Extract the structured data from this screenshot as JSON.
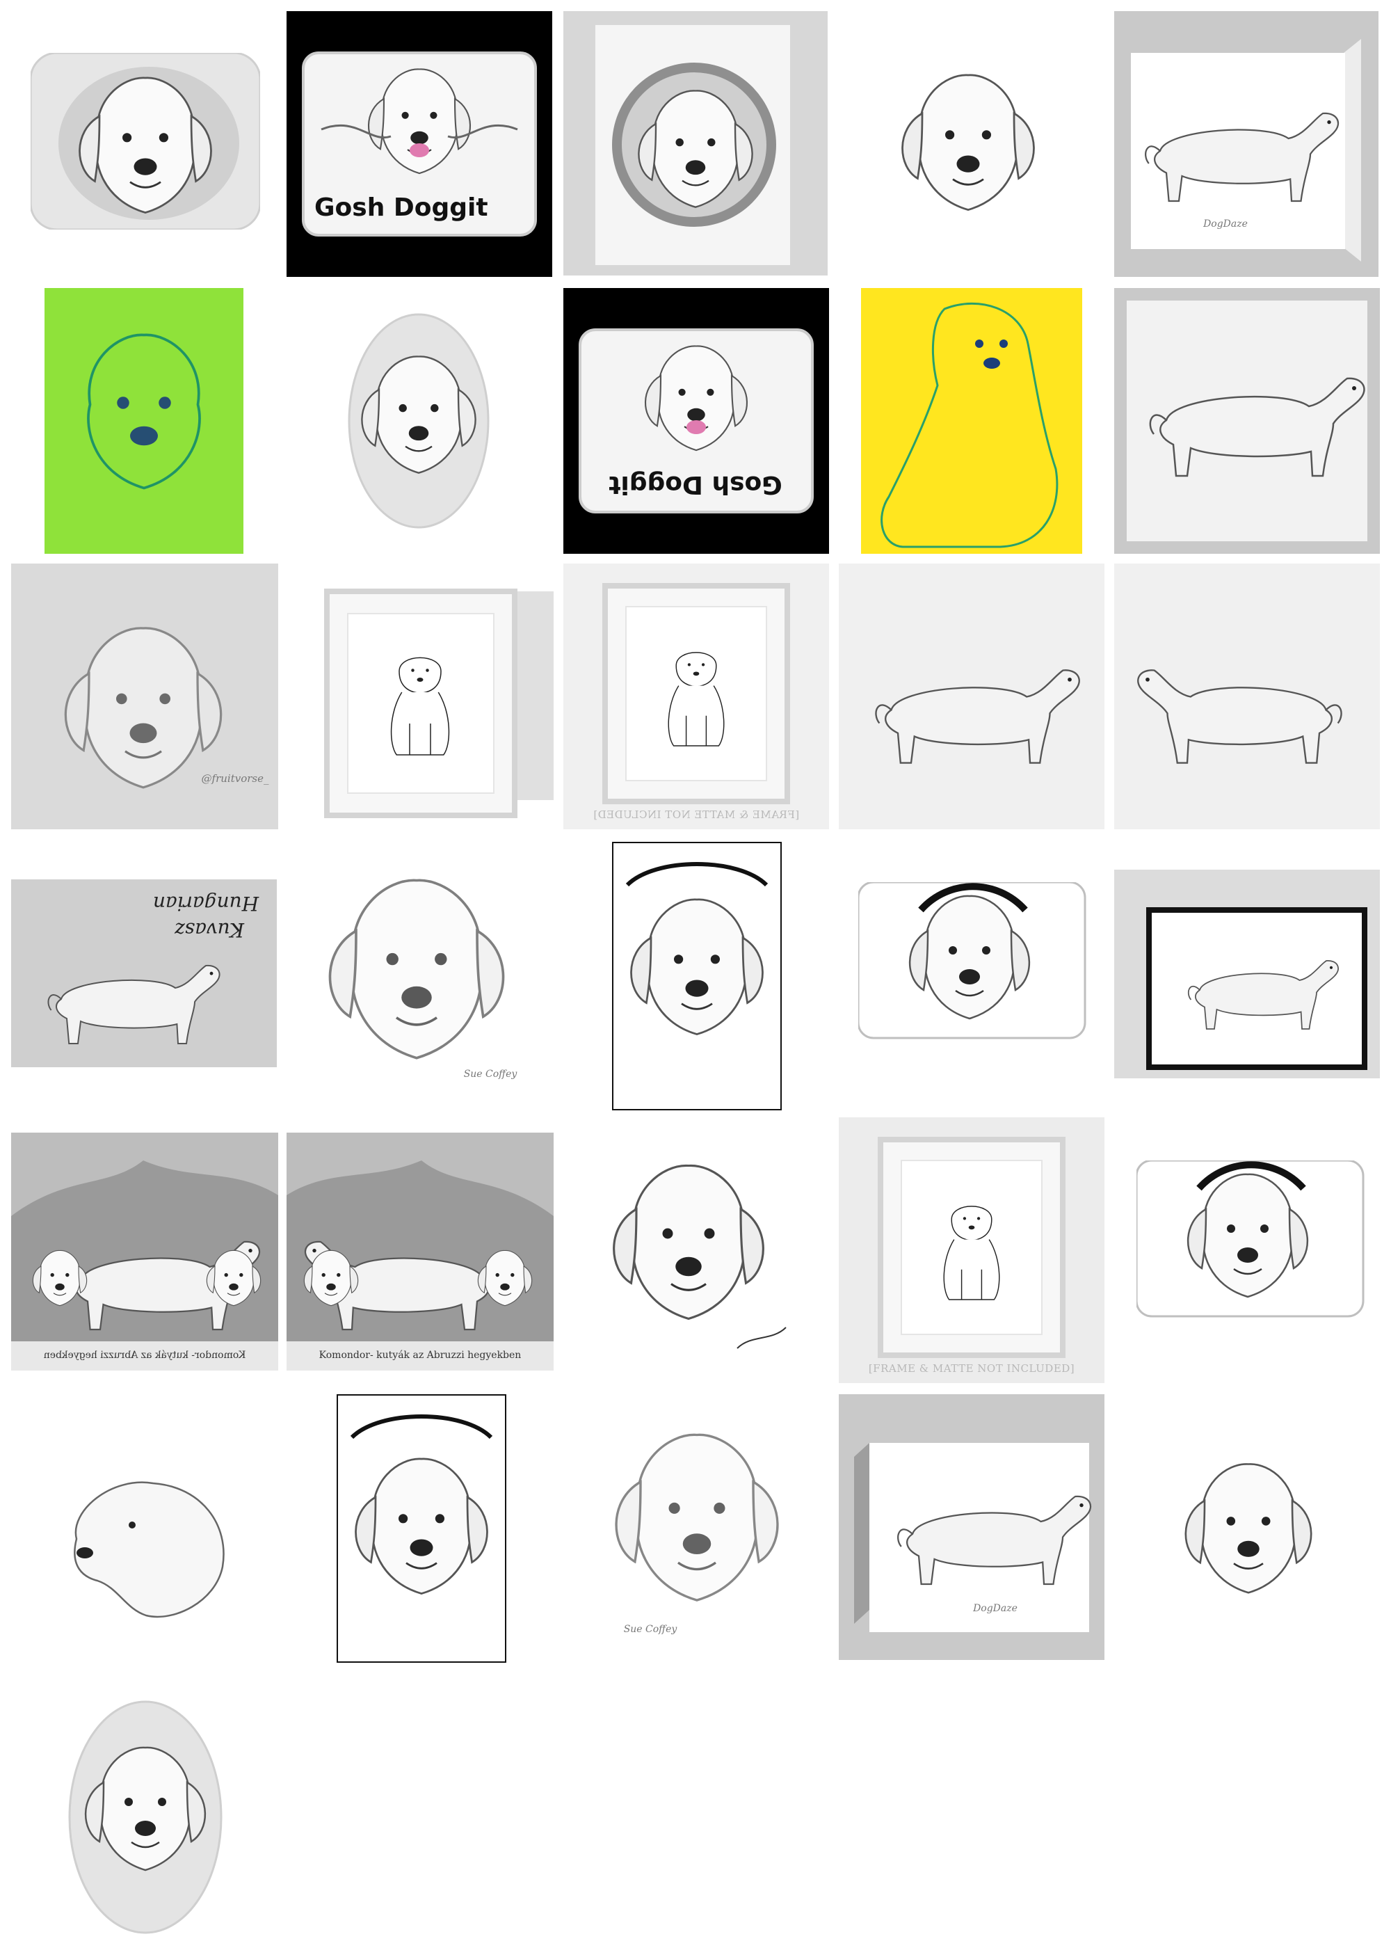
{
  "gallery": {
    "brand_label": "Gosh Doggit",
    "frame_note": "[FRAME & MATTE NOT INCLUDED]",
    "signature_dogdaze": "DogDaze",
    "signature_fruitvore": "@fruitvorse_",
    "signature_sue": "Sue Coffey",
    "handwritten_title_line1": "Hungarian",
    "handwritten_title_line2": "Kuvasz",
    "caption_engraving": "Komondor- kutyák az Abruzzi hegyekben",
    "caption_engraving_mirrored": "Komondor- kutyák az Abruzzi hegyekben"
  },
  "colors": {
    "green_bg": "#8fe23a",
    "yellow_bg": "#ffe61f",
    "grey_frame": "#c9c9c9",
    "black_bg": "#000000",
    "tongue": "#e07bb0"
  }
}
